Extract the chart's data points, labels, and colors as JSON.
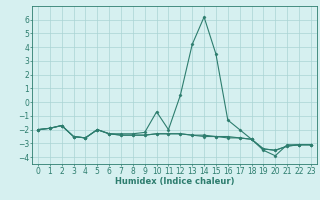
{
  "x": [
    0,
    1,
    2,
    3,
    4,
    5,
    6,
    7,
    8,
    9,
    10,
    11,
    12,
    13,
    14,
    15,
    16,
    17,
    18,
    19,
    20,
    21,
    22,
    23
  ],
  "line1": [
    -2.0,
    -1.9,
    -1.7,
    -2.5,
    -2.6,
    -2.0,
    -2.3,
    -2.3,
    -2.3,
    -2.2,
    -0.7,
    -2.0,
    0.5,
    4.2,
    6.2,
    3.5,
    -1.3,
    -2.0,
    -2.7,
    -3.5,
    -3.9,
    -3.1,
    -3.1,
    -3.1
  ],
  "line2": [
    -2.0,
    -1.9,
    -1.7,
    -2.5,
    -2.6,
    -2.0,
    -2.3,
    -2.4,
    -2.4,
    -2.4,
    -2.3,
    -2.3,
    -2.3,
    -2.4,
    -2.4,
    -2.5,
    -2.5,
    -2.6,
    -2.7,
    -3.4,
    -3.5,
    -3.2,
    -3.1,
    -3.1
  ],
  "line3": [
    -2.0,
    -1.9,
    -1.7,
    -2.5,
    -2.6,
    -2.0,
    -2.3,
    -2.4,
    -2.4,
    -2.4,
    -2.3,
    -2.3,
    -2.3,
    -2.4,
    -2.5,
    -2.5,
    -2.6,
    -2.6,
    -2.7,
    -3.4,
    -3.5,
    -3.2,
    -3.1,
    -3.1
  ],
  "color": "#2d7d6e",
  "bg_color": "#d6f0f0",
  "grid_color": "#aad4d4",
  "xlabel": "Humidex (Indice chaleur)",
  "ylim": [
    -4.5,
    7.0
  ],
  "xlim": [
    -0.5,
    23.5
  ],
  "yticks": [
    -4,
    -3,
    -2,
    -1,
    0,
    1,
    2,
    3,
    4,
    5,
    6
  ],
  "xticks": [
    0,
    1,
    2,
    3,
    4,
    5,
    6,
    7,
    8,
    9,
    10,
    11,
    12,
    13,
    14,
    15,
    16,
    17,
    18,
    19,
    20,
    21,
    22,
    23
  ],
  "marker": "D",
  "marker_size": 1.5,
  "line_width": 0.8,
  "font_size": 5.5,
  "xlabel_fontsize": 6.0
}
